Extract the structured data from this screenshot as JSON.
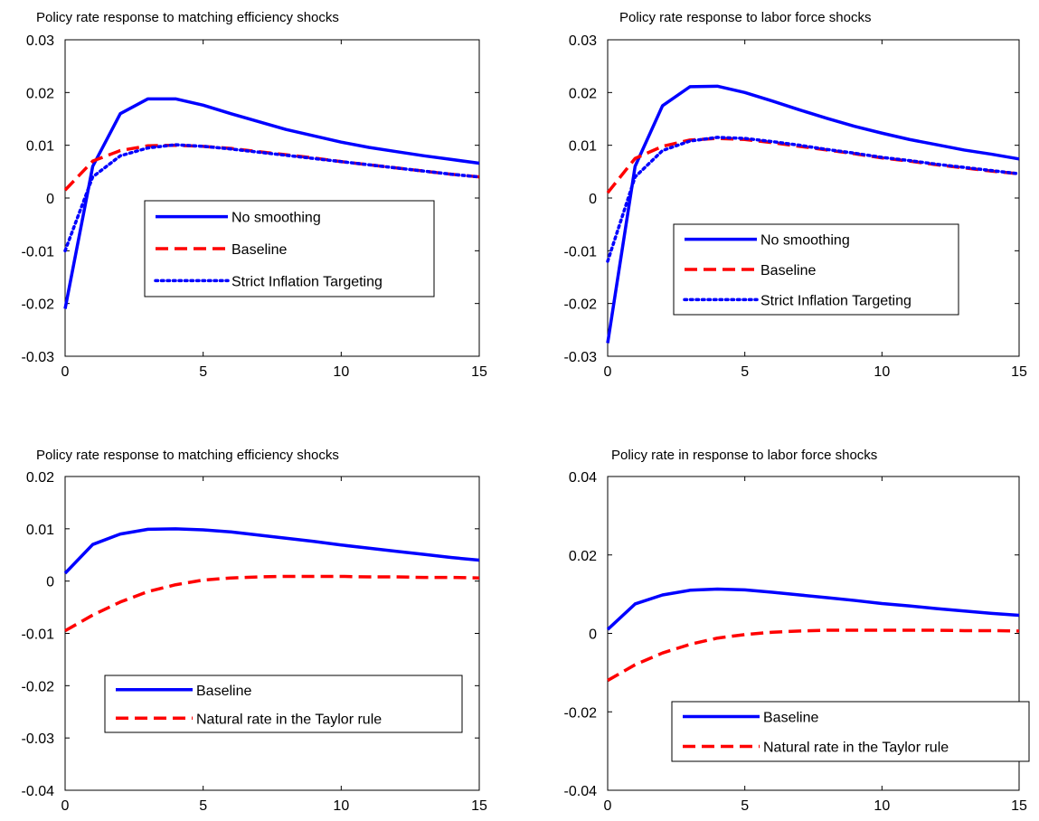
{
  "colors": {
    "blue": "#0000ff",
    "red": "#ff0000"
  },
  "chart_data": [
    {
      "type": "line",
      "title": "Policy rate response to matching efficiency shocks",
      "xlim": [
        0,
        15
      ],
      "ylim": [
        -0.03,
        0.03
      ],
      "xticks": [
        0,
        5,
        10,
        15
      ],
      "xtick_labels": [
        "0",
        "5",
        "10",
        "15"
      ],
      "yticks": [
        -0.03,
        -0.02,
        -0.01,
        0,
        0.01,
        0.02,
        0.03
      ],
      "ytick_labels": [
        "-0.03",
        "-0.02",
        "-0.01",
        "0",
        "0.01",
        "0.02",
        "0.03"
      ],
      "legend_position": "center-right",
      "x": [
        0,
        1,
        2,
        3,
        4,
        5,
        6,
        7,
        8,
        9,
        10,
        11,
        12,
        13,
        14,
        15
      ],
      "series": [
        {
          "name": "No smoothing",
          "style": "solid",
          "color": "#0000ff",
          "values": [
            -0.021,
            0.006,
            0.016,
            0.0188,
            0.0188,
            0.0176,
            0.016,
            0.0145,
            0.013,
            0.0118,
            0.0106,
            0.0096,
            0.0088,
            0.008,
            0.0073,
            0.0066
          ]
        },
        {
          "name": "Baseline",
          "style": "dashed",
          "color": "#ff0000",
          "values": [
            0.0015,
            0.007,
            0.009,
            0.0099,
            0.01,
            0.0098,
            0.0094,
            0.0088,
            0.0082,
            0.0076,
            0.0069,
            0.0063,
            0.0057,
            0.0051,
            0.0045,
            0.004
          ]
        },
        {
          "name": "Strict Inflation Targeting",
          "style": "dotted",
          "color": "#0000ff",
          "values": [
            -0.01,
            0.004,
            0.008,
            0.0095,
            0.0101,
            0.0098,
            0.0093,
            0.0087,
            0.0081,
            0.0075,
            0.0069,
            0.0063,
            0.0057,
            0.0051,
            0.0045,
            0.004
          ]
        }
      ]
    },
    {
      "type": "line",
      "title": "Policy rate response to labor force shocks",
      "xlim": [
        0,
        15
      ],
      "ylim": [
        -0.03,
        0.03
      ],
      "xticks": [
        0,
        5,
        10,
        15
      ],
      "xtick_labels": [
        "0",
        "5",
        "10",
        "15"
      ],
      "yticks": [
        -0.03,
        -0.02,
        -0.01,
        0,
        0.01,
        0.02,
        0.03
      ],
      "ytick_labels": [
        "-0.03",
        "-0.02",
        "-0.01",
        "0",
        "0.01",
        "0.02",
        "0.03"
      ],
      "legend_position": "lower-right",
      "x": [
        0,
        1,
        2,
        3,
        4,
        5,
        6,
        7,
        8,
        9,
        10,
        11,
        12,
        13,
        14,
        15
      ],
      "series": [
        {
          "name": "No smoothing",
          "style": "solid",
          "color": "#0000ff",
          "values": [
            -0.0275,
            0.006,
            0.0175,
            0.0211,
            0.0212,
            0.02,
            0.0184,
            0.0167,
            0.0151,
            0.0136,
            0.0123,
            0.0111,
            0.0101,
            0.0091,
            0.0083,
            0.0074
          ]
        },
        {
          "name": "Baseline",
          "style": "dashed",
          "color": "#ff0000",
          "values": [
            0.001,
            0.0075,
            0.0098,
            0.011,
            0.0113,
            0.0111,
            0.0105,
            0.0098,
            0.0091,
            0.0084,
            0.0076,
            0.007,
            0.0063,
            0.0057,
            0.0051,
            0.0046
          ]
        },
        {
          "name": "Strict Inflation Targeting",
          "style": "dotted",
          "color": "#0000ff",
          "values": [
            -0.012,
            0.004,
            0.009,
            0.0108,
            0.0115,
            0.0113,
            0.0107,
            0.01,
            0.0092,
            0.0085,
            0.0077,
            0.0071,
            0.0064,
            0.0058,
            0.0052,
            0.0046
          ]
        }
      ]
    },
    {
      "type": "line",
      "title": "Policy rate response to matching efficiency shocks",
      "xlim": [
        0,
        15
      ],
      "ylim": [
        -0.04,
        0.02
      ],
      "xticks": [
        0,
        5,
        10,
        15
      ],
      "xtick_labels": [
        "0",
        "5",
        "10",
        "15"
      ],
      "yticks": [
        -0.04,
        -0.03,
        -0.02,
        -0.01,
        0,
        0.01,
        0.02
      ],
      "ytick_labels": [
        "-0.04",
        "-0.03",
        "-0.02",
        "-0.01",
        "0",
        "0.01",
        "0.02"
      ],
      "legend_position": "lower-right",
      "x": [
        0,
        1,
        2,
        3,
        4,
        5,
        6,
        7,
        8,
        9,
        10,
        11,
        12,
        13,
        14,
        15
      ],
      "series": [
        {
          "name": "Baseline",
          "style": "solid",
          "color": "#0000ff",
          "values": [
            0.0015,
            0.007,
            0.009,
            0.0099,
            0.01,
            0.0098,
            0.0094,
            0.0088,
            0.0082,
            0.0076,
            0.0069,
            0.0063,
            0.0057,
            0.0051,
            0.0045,
            0.004
          ]
        },
        {
          "name": "Natural rate in the Taylor rule",
          "style": "dashed",
          "color": "#ff0000",
          "values": [
            -0.0095,
            -0.0065,
            -0.004,
            -0.002,
            -0.0007,
            0.0002,
            0.0006,
            0.0008,
            0.0009,
            0.0009,
            0.0009,
            0.0008,
            0.0008,
            0.0007,
            0.0007,
            0.0006
          ]
        }
      ]
    },
    {
      "type": "line",
      "title": "Policy rate in response to labor force shocks",
      "xlim": [
        0,
        15
      ],
      "ylim": [
        -0.04,
        0.04
      ],
      "xticks": [
        0,
        5,
        10,
        15
      ],
      "xtick_labels": [
        "0",
        "5",
        "10",
        "15"
      ],
      "yticks": [
        -0.04,
        -0.02,
        0,
        0.02,
        0.04
      ],
      "ytick_labels": [
        "-0.04",
        "-0.02",
        "0",
        "0.02",
        "0.04"
      ],
      "legend_position": "lower-right",
      "x": [
        0,
        1,
        2,
        3,
        4,
        5,
        6,
        7,
        8,
        9,
        10,
        11,
        12,
        13,
        14,
        15
      ],
      "series": [
        {
          "name": "Baseline",
          "style": "solid",
          "color": "#0000ff",
          "values": [
            0.001,
            0.0075,
            0.0098,
            0.011,
            0.0113,
            0.0111,
            0.0105,
            0.0098,
            0.0091,
            0.0084,
            0.0076,
            0.007,
            0.0063,
            0.0057,
            0.0051,
            0.0046
          ]
        },
        {
          "name": "Natural rate in the Taylor rule",
          "style": "dashed",
          "color": "#ff0000",
          "values": [
            -0.012,
            -0.008,
            -0.005,
            -0.0028,
            -0.0012,
            -0.0003,
            0.0003,
            0.0006,
            0.0008,
            0.0008,
            0.0008,
            0.0008,
            0.0008,
            0.0007,
            0.0007,
            0.0006
          ]
        }
      ]
    }
  ]
}
